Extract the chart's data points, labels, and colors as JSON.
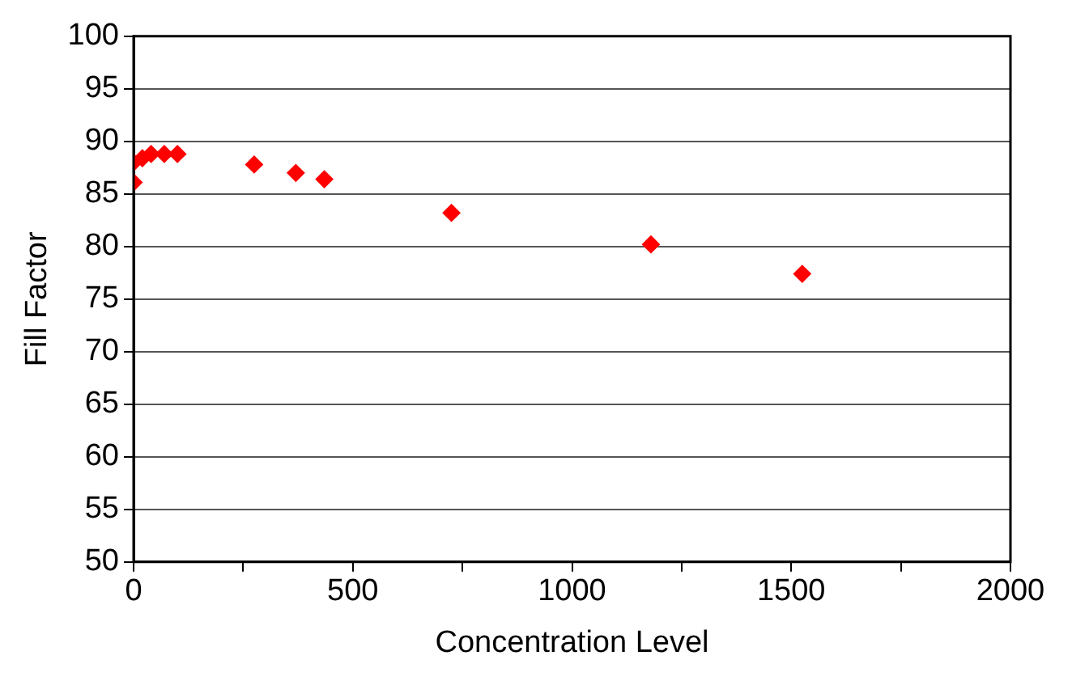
{
  "chart_data": {
    "type": "scatter",
    "xlabel": "Concentration Level",
    "ylabel": "Fill Factor",
    "x": [
      0,
      0,
      20,
      40,
      70,
      100,
      275,
      370,
      435,
      725,
      1180,
      1525
    ],
    "values": [
      86.1,
      88.0,
      88.4,
      88.8,
      88.8,
      88.8,
      87.8,
      87.0,
      86.4,
      83.2,
      80.2,
      77.4
    ],
    "color": "#ff0000",
    "marker": "diamond",
    "grid": "y",
    "xlim": [
      0,
      2000
    ],
    "xticks": [
      0,
      {
        "value": 250,
        "label": null
      },
      500,
      {
        "value": 750,
        "label": null
      },
      1000,
      {
        "value": 1250,
        "label": null
      },
      1500,
      {
        "value": 1750,
        "label": null
      },
      2000
    ],
    "ylim": [
      50,
      100
    ],
    "yticks": [
      50,
      55,
      60,
      65,
      70,
      75,
      80,
      85,
      90,
      95,
      100
    ]
  }
}
